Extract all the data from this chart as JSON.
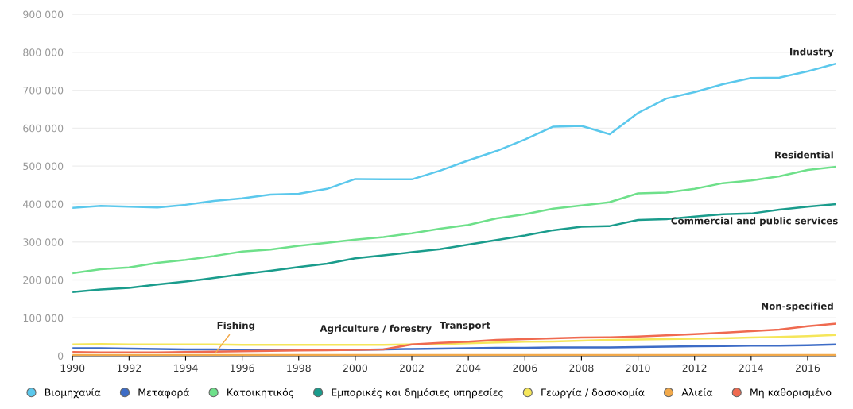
{
  "chart_data": {
    "type": "line",
    "x": [
      1990,
      1991,
      1992,
      1993,
      1994,
      1995,
      1996,
      1997,
      1998,
      1999,
      2000,
      2001,
      2002,
      2003,
      2004,
      2005,
      2006,
      2007,
      2008,
      2009,
      2010,
      2011,
      2012,
      2013,
      2014,
      2015,
      2016,
      2017
    ],
    "series": [
      {
        "name": "Βιομηχανία",
        "color": "#5bc8ec",
        "values": [
          390000,
          395000,
          393000,
          391000,
          398000,
          408000,
          415000,
          425000,
          427000,
          440000,
          466000,
          465000,
          465000,
          488000,
          515000,
          540000,
          570000,
          604000,
          606000,
          584000,
          640000,
          678000,
          695000,
          716000,
          732000,
          733000,
          750000,
          770000
        ]
      },
      {
        "name": "Μεταφορά",
        "color": "#3d6cc6",
        "values": [
          20000,
          20000,
          19000,
          18000,
          17000,
          17000,
          16000,
          16000,
          16000,
          16000,
          16000,
          17000,
          18000,
          19000,
          20000,
          21000,
          21000,
          22000,
          22000,
          22000,
          23000,
          24000,
          25000,
          26000,
          27000,
          27000,
          28000,
          30000
        ]
      },
      {
        "name": "Κατοικητικός",
        "color": "#6ee08a",
        "values": [
          218000,
          228000,
          233000,
          245000,
          253000,
          263000,
          275000,
          280000,
          290000,
          298000,
          306000,
          313000,
          323000,
          335000,
          345000,
          362000,
          373000,
          388000,
          396000,
          405000,
          428000,
          430000,
          440000,
          455000,
          462000,
          473000,
          490000,
          498000
        ]
      },
      {
        "name": "Εμπορικές και δημόσιες υπηρεσίες",
        "color": "#1a9c8c",
        "values": [
          168000,
          175000,
          179000,
          188000,
          196000,
          205000,
          215000,
          224000,
          234000,
          243000,
          257000,
          265000,
          273000,
          281000,
          293000,
          305000,
          317000,
          331000,
          340000,
          342000,
          358000,
          360000,
          367000,
          373000,
          375000,
          385000,
          393000,
          400000
        ]
      },
      {
        "name": "Γεωργία / δασοκομία",
        "color": "#f5e65a",
        "values": [
          30000,
          31000,
          30000,
          30000,
          30000,
          30000,
          29000,
          29000,
          29000,
          29000,
          29000,
          29000,
          30000,
          31000,
          33000,
          35000,
          37000,
          38000,
          40000,
          42000,
          43000,
          44000,
          45000,
          46000,
          48000,
          50000,
          52000,
          55000
        ]
      },
      {
        "name": "Αλιεία",
        "color": "#f2a94a",
        "values": [
          2000,
          2000,
          2000,
          2000,
          2000,
          2000,
          2000,
          2000,
          2000,
          2000,
          2000,
          2000,
          2000,
          2000,
          2000,
          2000,
          2000,
          2000,
          2000,
          2000,
          2000,
          2000,
          2000,
          2000,
          2000,
          2000,
          2000,
          2000
        ]
      },
      {
        "name": "Μη καθορισμένο",
        "color": "#ef6a50",
        "values": [
          10000,
          9000,
          9000,
          9000,
          10000,
          11000,
          12000,
          13000,
          14000,
          15000,
          16000,
          17000,
          30000,
          34000,
          37000,
          42000,
          44000,
          46000,
          48000,
          49000,
          51000,
          54000,
          57000,
          61000,
          65000,
          69000,
          78000,
          85000
        ]
      }
    ],
    "xlim": [
      1990,
      2017
    ],
    "xticks": [
      1990,
      1992,
      1994,
      1996,
      1998,
      2000,
      2002,
      2004,
      2006,
      2008,
      2010,
      2012,
      2014,
      2016
    ],
    "ylim": [
      0,
      900000
    ],
    "yticks": [
      0,
      {
        "value": 100000,
        "label": "100 000"
      },
      {
        "value": 200000,
        "label": "200 000"
      },
      {
        "value": 300000,
        "label": "300 000"
      },
      {
        "value": 400000,
        "label": "400 000"
      },
      {
        "value": 500000,
        "label": "500 000"
      },
      {
        "value": 600000,
        "label": "600 000"
      },
      {
        "value": 700000,
        "label": "700 000"
      },
      {
        "value": 800000,
        "label": "800 000"
      },
      {
        "value": 900000,
        "label": "900 000"
      }
    ],
    "grid": "y",
    "legend": "bottom",
    "marker": "none",
    "line_style": "solid",
    "annotations": [
      {
        "text": "Industry",
        "x": 2017,
        "y": 770000
      },
      {
        "text": "Residential",
        "x": 2017,
        "y": 498000
      },
      {
        "text": "Commercial and public services",
        "x": 2017,
        "y": 400000
      },
      {
        "text": "Non-specified",
        "x": 2017,
        "y": 85000
      },
      {
        "text": "Fishing",
        "x": 1995,
        "y": 2000
      },
      {
        "text": "Agriculture / forestry",
        "x": 2001,
        "y": 29000
      },
      {
        "text": "Transport",
        "x": 2004,
        "y": 20000
      }
    ]
  }
}
